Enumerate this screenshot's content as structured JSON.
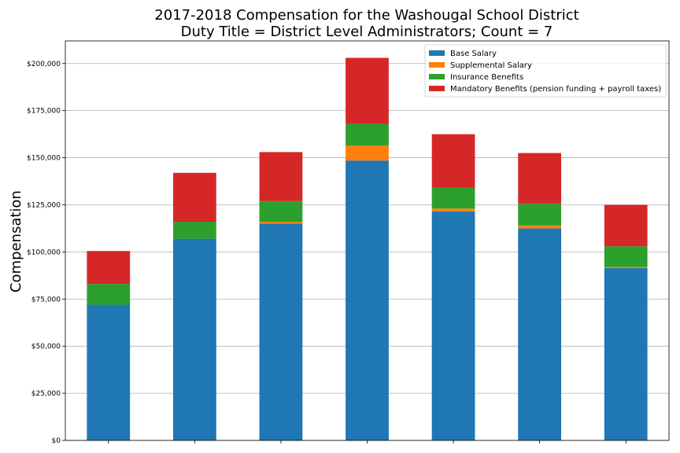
{
  "chart_data": {
    "type": "bar",
    "stacked": true,
    "title": "2017-2018 Compensation for the Washougal School District",
    "subtitle": "Duty Title = District Level Administrators; Count = 7",
    "xlabel": "",
    "ylabel": "Compensation",
    "ylim": [
      0,
      212000
    ],
    "yticks": [
      0,
      25000,
      50000,
      75000,
      100000,
      125000,
      150000,
      175000,
      200000
    ],
    "ytick_labels": [
      "$0",
      "$25,000",
      "$50,000",
      "$75,000",
      "$100,000",
      "$125,000",
      "$150,000",
      "$175,000",
      "$200,000"
    ],
    "categories": [
      "",
      "",
      "",
      "",
      "",
      "",
      ""
    ],
    "grid": "horizontal",
    "legend_position": "top-right",
    "series": [
      {
        "name": "Base Salary",
        "color": "#1f77b4",
        "values": [
          72000,
          107000,
          115000,
          148500,
          121500,
          112500,
          91500
        ]
      },
      {
        "name": "Supplemental Salary",
        "color": "#ff7f0e",
        "values": [
          0,
          0,
          1000,
          8000,
          1500,
          1500,
          500
        ]
      },
      {
        "name": "Insurance Benefits",
        "color": "#2ca02c",
        "values": [
          11000,
          9000,
          11000,
          11500,
          11000,
          11500,
          11000
        ]
      },
      {
        "name": "Mandatory Benefits (pension funding + payroll taxes)",
        "color": "#d62728",
        "values": [
          17500,
          26000,
          26000,
          35000,
          28500,
          27000,
          22000
        ]
      }
    ]
  }
}
